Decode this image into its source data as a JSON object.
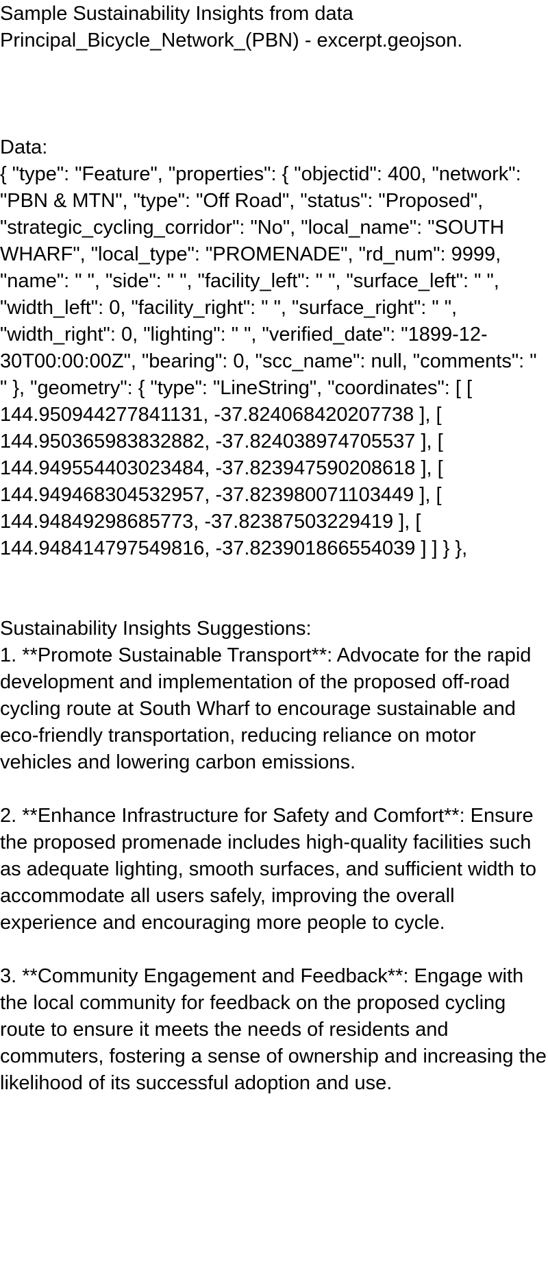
{
  "document": {
    "title": "Sample Sustainability Insights from data Principal_Bicycle_Network_(PBN) - excerpt.geojson.",
    "data_label": "Data:",
    "data_body": "{ \"type\": \"Feature\", \"properties\": { \"objectid\": 400, \"network\": \"PBN & MTN\", \"type\": \"Off Road\", \"status\": \"Proposed\", \"strategic_cycling_corridor\": \"No\", \"local_name\": \"SOUTH WHARF\", \"local_type\": \"PROMENADE\", \"rd_num\": 9999, \"name\": \" \", \"side\": \" \", \"facility_left\": \" \", \"surface_left\": \" \", \"width_left\": 0, \"facility_right\": \" \", \"surface_right\": \" \", \"width_right\": 0, \"lighting\": \" \", \"verified_date\": \"1899-12-30T00:00:00Z\", \"bearing\": 0, \"scc_name\": null, \"comments\": \" \" }, \"geometry\": { \"type\": \"LineString\", \"coordinates\": [ [ 144.950944277841131, -37.824068420207738 ], [ 144.950365983832882, -37.824038974705537 ], [ 144.949554403023484, -37.823947590208618 ], [ 144.949468304532957, -37.823980071103449 ], [ 144.94849298685773, -37.82387503229419 ], [ 144.948414797549816, -37.823901866554039 ] ] } },",
    "insights_label": "Sustainability Insights Suggestions:",
    "suggestions": [
      "1. **Promote Sustainable Transport**: Advocate for the rapid development and implementation of the proposed off-road cycling route at South Wharf to encourage sustainable and eco-friendly transportation, reducing reliance on motor vehicles and lowering carbon emissions.",
      "2. **Enhance Infrastructure for Safety and Comfort**: Ensure the proposed promenade includes high-quality facilities such as adequate lighting, smooth surfaces, and sufficient width to accommodate all users safely, improving the overall experience and encouraging more people to cycle.",
      "3. **Community Engagement and Feedback**: Engage with the local community for feedback on the proposed cycling route to ensure it meets the needs of residents and commuters, fostering a sense of ownership and increasing the likelihood of its successful adoption and use."
    ]
  }
}
